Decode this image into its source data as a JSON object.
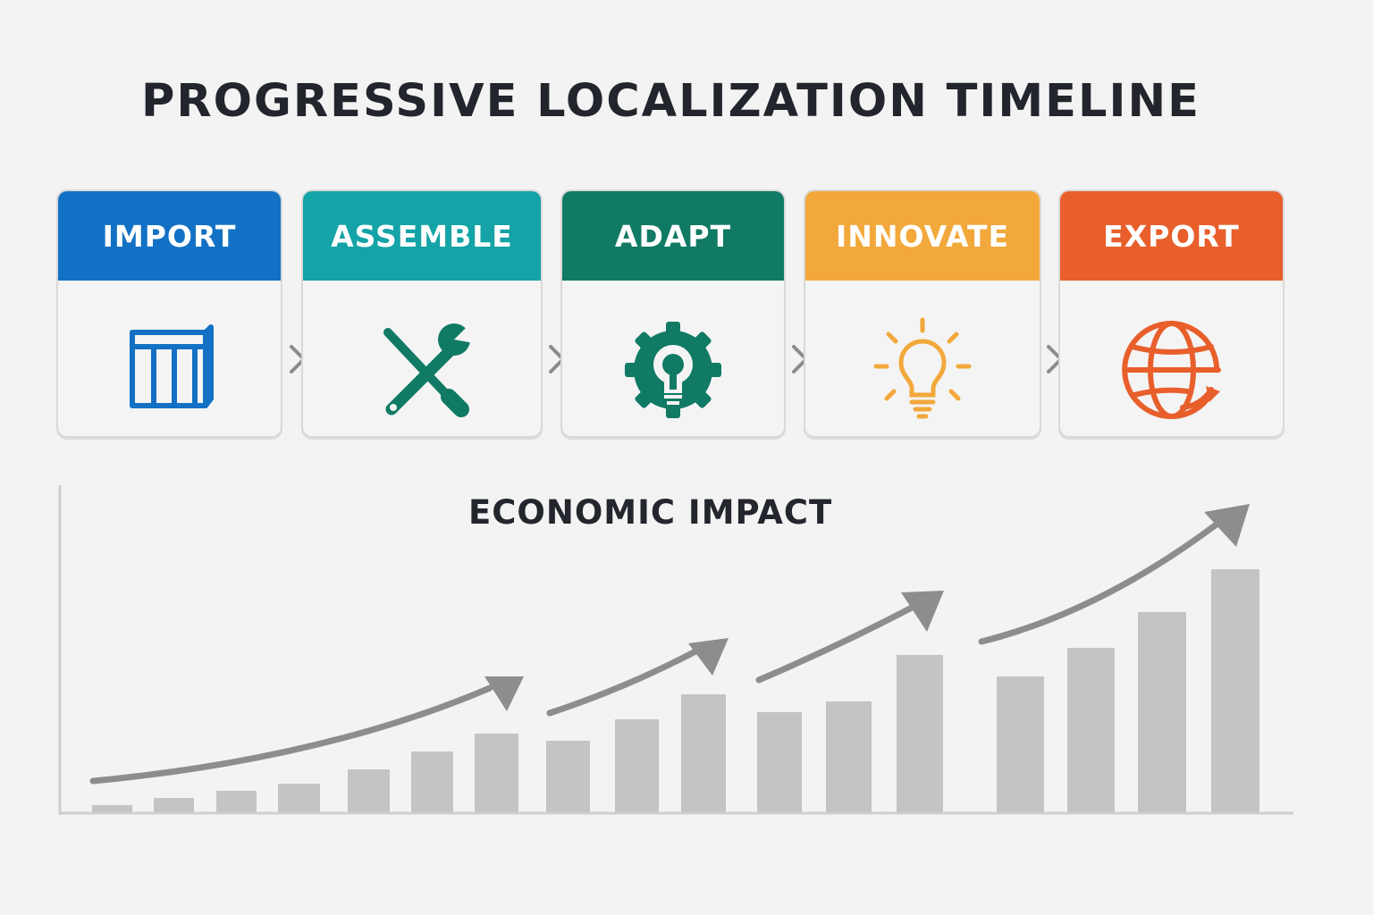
{
  "title": "PROGRESSIVE LOCALIZATION TIMELINE",
  "stages": [
    {
      "label": "IMPORT",
      "color": "#1271c4",
      "icon": "grid-table-icon"
    },
    {
      "label": "ASSEMBLE",
      "color": "#14a3a6",
      "icon": "wrench-screwdriver-icon"
    },
    {
      "label": "ADAPT",
      "color": "#107a65",
      "icon": "gear-lightbulb-icon"
    },
    {
      "label": "INNOVATE",
      "color": "#f2a83b",
      "icon": "lightbulb-icon"
    },
    {
      "label": "EXPORT",
      "color": "#e85f2b",
      "icon": "globe-arrow-icon"
    }
  ],
  "connector_icon": "chevron-right-icon",
  "chart_data": {
    "type": "bar",
    "title": "ECONOMIC IMPACT",
    "xlabel": "",
    "ylabel": "",
    "bar_color": "#c4c4c6",
    "trend_color": "#8d8d8f",
    "trend_arrows": 4,
    "values": [
      1,
      2,
      3,
      4,
      6,
      8.5,
      11,
      10,
      13,
      16.5,
      14,
      15.5,
      22,
      19,
      23,
      28,
      34
    ]
  }
}
